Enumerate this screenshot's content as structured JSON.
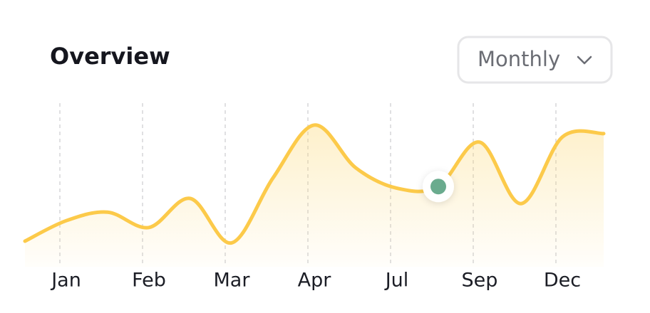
{
  "header": {
    "title": "Overview",
    "dropdown": "Monthly"
  },
  "chart_data": {
    "type": "line",
    "categories": [
      null,
      "Jan",
      null,
      "Feb",
      null,
      "Mar",
      null,
      "Apr",
      null,
      "Jul",
      null,
      "Sep",
      null,
      "Dec",
      null
    ],
    "series": [
      {
        "color": "#fcca4a",
        "values": [
          15,
          27,
          32,
          23,
          40,
          14,
          52,
          83,
          58,
          46,
          47,
          73,
          37,
          76,
          78
        ]
      }
    ],
    "highlight_index": 10,
    "highlight_color": "#6aab8e",
    "ylim": [
      0,
      100
    ],
    "grid": true
  }
}
